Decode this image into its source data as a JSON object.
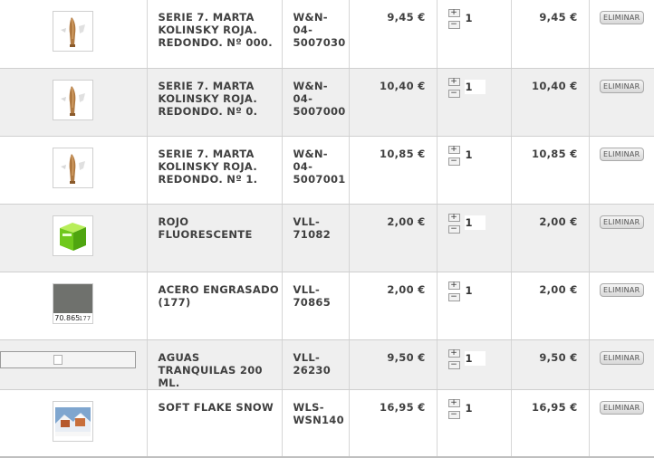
{
  "items": [
    {
      "name": "SERIE 7. MARTA KOLINSKY ROJA. REDONDO. Nº 000.",
      "ref": "W&N-\n04-\n5007030",
      "price": "9,45 €",
      "qty": "1",
      "total": "9,45 €",
      "delete_label": "ELIMINAR",
      "thumb": "brush-thumbnail"
    },
    {
      "name": "SERIE 7. MARTA KOLINSKY ROJA. REDONDO. Nº 0.",
      "ref": "W&N-\n04-\n5007000",
      "price": "10,40 €",
      "qty": "1",
      "total": "10,40 €",
      "delete_label": "ELIMINAR",
      "thumb": "brush-thumbnail"
    },
    {
      "name": "SERIE 7. MARTA KOLINSKY ROJA. REDONDO. Nº 1.",
      "ref": "W&N-\n04-\n5007001",
      "price": "10,85 €",
      "qty": "1",
      "total": "10,85 €",
      "delete_label": "ELIMINAR",
      "thumb": "brush-thumbnail"
    },
    {
      "name": "ROJO FLUORESCENTE",
      "ref": "VLL-\n71082",
      "price": "2,00 €",
      "qty": "1",
      "total": "2,00 €",
      "delete_label": "ELIMINAR",
      "thumb": "green-box-thumbnail"
    },
    {
      "name": "ACERO ENGRASADO (177)",
      "ref": "VLL-\n70865",
      "price": "2,00 €",
      "qty": "1",
      "total": "2,00 €",
      "delete_label": "ELIMINAR",
      "thumb": "gray-swatch-thumbnail",
      "thumb_label": "70.865",
      "thumb_code": "177"
    },
    {
      "name": "AGUAS TRANQUILAS 200 ML.",
      "ref": "VLL-\n26230",
      "price": "9,50 €",
      "qty": "1",
      "total": "9,50 €",
      "delete_label": "ELIMINAR",
      "thumb": "broken-image"
    },
    {
      "name": "SOFT FLAKE SNOW",
      "ref": "WLS-\nWSN140",
      "price": "16,95 €",
      "qty": "1",
      "total": "16,95 €",
      "delete_label": "ELIMINAR",
      "thumb": "snow-scene-thumbnail"
    }
  ],
  "controls": {
    "plus": "+",
    "minus": "−"
  }
}
